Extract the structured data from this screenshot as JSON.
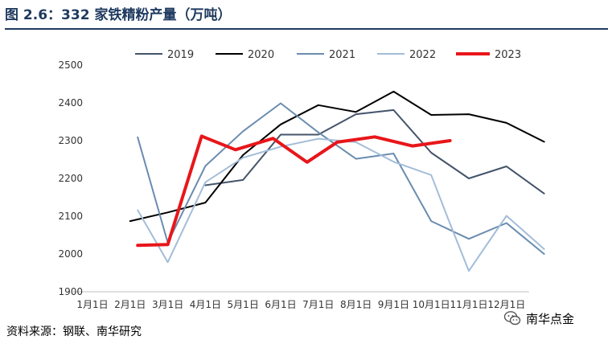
{
  "header": {
    "title": "图 2.6：332 家铁精粉产量（万吨）"
  },
  "footer": {
    "source": "资料来源：钢联、南华研究",
    "watermark": "南华点金",
    "watermark_icon": "wechat-icon"
  },
  "chart_data": {
    "type": "line",
    "title": "332 家铁精粉产量（万吨）",
    "xlabel": "",
    "ylabel": "",
    "ylim": [
      1900,
      2500
    ],
    "yticks": [
      1900,
      2000,
      2100,
      2200,
      2300,
      2400,
      2500
    ],
    "categories": [
      "1月1日",
      "2月1日",
      "3月1日",
      "4月1日",
      "5月1日",
      "6月1日",
      "7月1日",
      "8月1日",
      "9月1日",
      "10月1日",
      "11月1日",
      "12月1日"
    ],
    "legend_position": "top",
    "grid": false,
    "series": [
      {
        "name": "2019",
        "color": "#44546a",
        "width": 2,
        "points": [
          [
            3.0,
            2182
          ],
          [
            4.0,
            2196
          ],
          [
            5.0,
            2316
          ],
          [
            6.0,
            2316
          ],
          [
            7.0,
            2370
          ],
          [
            8.0,
            2381
          ],
          [
            9.0,
            2268
          ],
          [
            10.0,
            2200
          ],
          [
            11.0,
            2232
          ],
          [
            12.0,
            2160
          ]
        ]
      },
      {
        "name": "2020",
        "color": "#000000",
        "width": 2,
        "points": [
          [
            1.0,
            2087
          ],
          [
            2.0,
            2110
          ],
          [
            3.0,
            2136
          ],
          [
            4.0,
            2262
          ],
          [
            5.0,
            2343
          ],
          [
            6.0,
            2394
          ],
          [
            7.0,
            2376
          ],
          [
            8.0,
            2430
          ],
          [
            9.0,
            2368
          ],
          [
            10.0,
            2370
          ],
          [
            11.0,
            2347
          ],
          [
            12.0,
            2297
          ]
        ]
      },
      {
        "name": "2021",
        "color": "#6a8caf",
        "width": 2,
        "points": [
          [
            1.2,
            2309
          ],
          [
            2.0,
            2030
          ],
          [
            3.0,
            2233
          ],
          [
            4.0,
            2325
          ],
          [
            5.0,
            2399
          ],
          [
            6.0,
            2322
          ],
          [
            7.0,
            2252
          ],
          [
            8.0,
            2266
          ],
          [
            9.0,
            2087
          ],
          [
            10.0,
            2040
          ],
          [
            11.0,
            2082
          ],
          [
            12.0,
            2000
          ]
        ]
      },
      {
        "name": "2022",
        "color": "#a3bdd9",
        "width": 2,
        "points": [
          [
            1.2,
            2116
          ],
          [
            2.0,
            1978
          ],
          [
            3.0,
            2190
          ],
          [
            4.0,
            2255
          ],
          [
            5.0,
            2284
          ],
          [
            6.0,
            2305
          ],
          [
            7.0,
            2296
          ],
          [
            8.0,
            2244
          ],
          [
            9.0,
            2209
          ],
          [
            9.5,
            2080
          ],
          [
            10.0,
            1955
          ],
          [
            11.0,
            2101
          ],
          [
            12.0,
            2013
          ]
        ]
      },
      {
        "name": "2023",
        "color": "#e8161a",
        "width": 4,
        "points": [
          [
            1.2,
            2023
          ],
          [
            2.0,
            2025
          ],
          [
            2.9,
            2312
          ],
          [
            3.8,
            2276
          ],
          [
            4.8,
            2306
          ],
          [
            5.7,
            2243
          ],
          [
            6.5,
            2296
          ],
          [
            7.5,
            2310
          ],
          [
            8.5,
            2286
          ],
          [
            9.5,
            2300
          ]
        ]
      }
    ]
  }
}
